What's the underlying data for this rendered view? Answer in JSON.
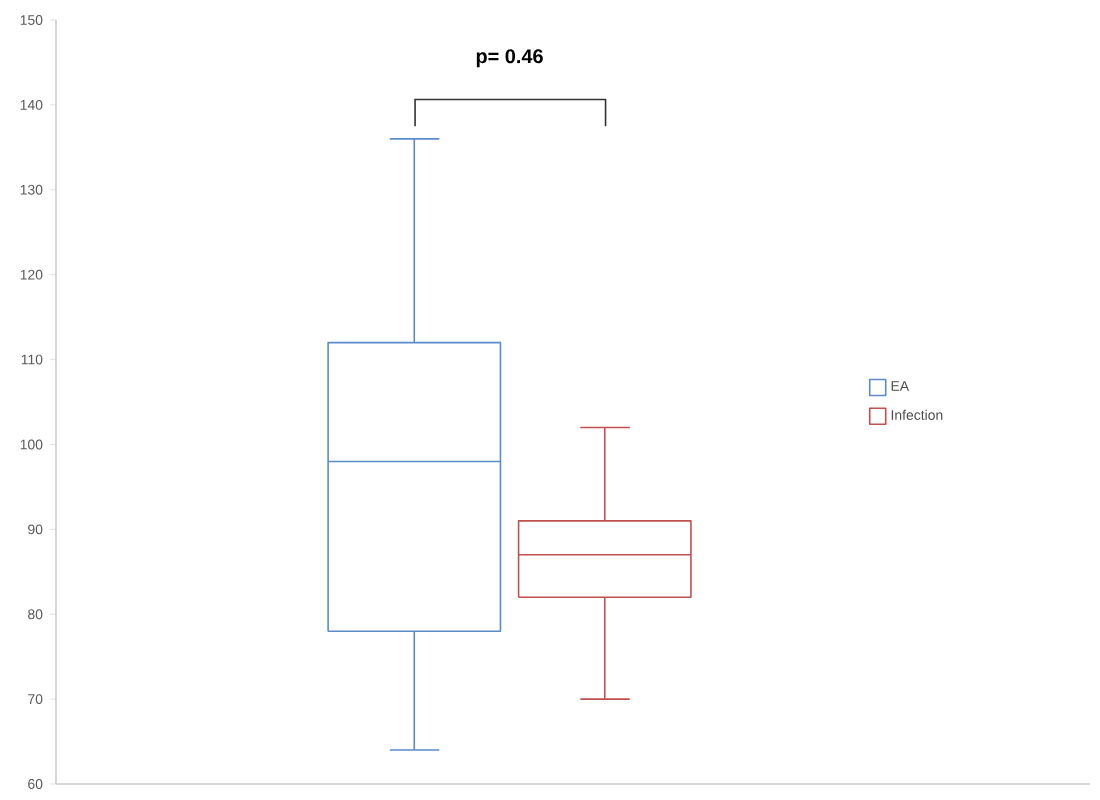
{
  "chart_data": {
    "type": "box",
    "categories": [
      null
    ],
    "series": [
      {
        "name": "EA",
        "color": "#5b8bc9",
        "boxes": [
          {
            "low": 64,
            "q1": 78,
            "median": 98,
            "q3": 112,
            "high": 136
          }
        ]
      },
      {
        "name": "Infection",
        "color": "#c0504d",
        "boxes": [
          {
            "low": 70,
            "q1": 82,
            "median": 87,
            "q3": 91,
            "high": 102
          }
        ]
      }
    ],
    "ylim": [
      60,
      150
    ],
    "yticks": [
      60,
      70,
      80,
      90,
      100,
      110,
      120,
      130,
      140,
      150
    ],
    "annotations": [
      "p= 0.46"
    ],
    "legend": "right",
    "tick_labels": "y"
  }
}
